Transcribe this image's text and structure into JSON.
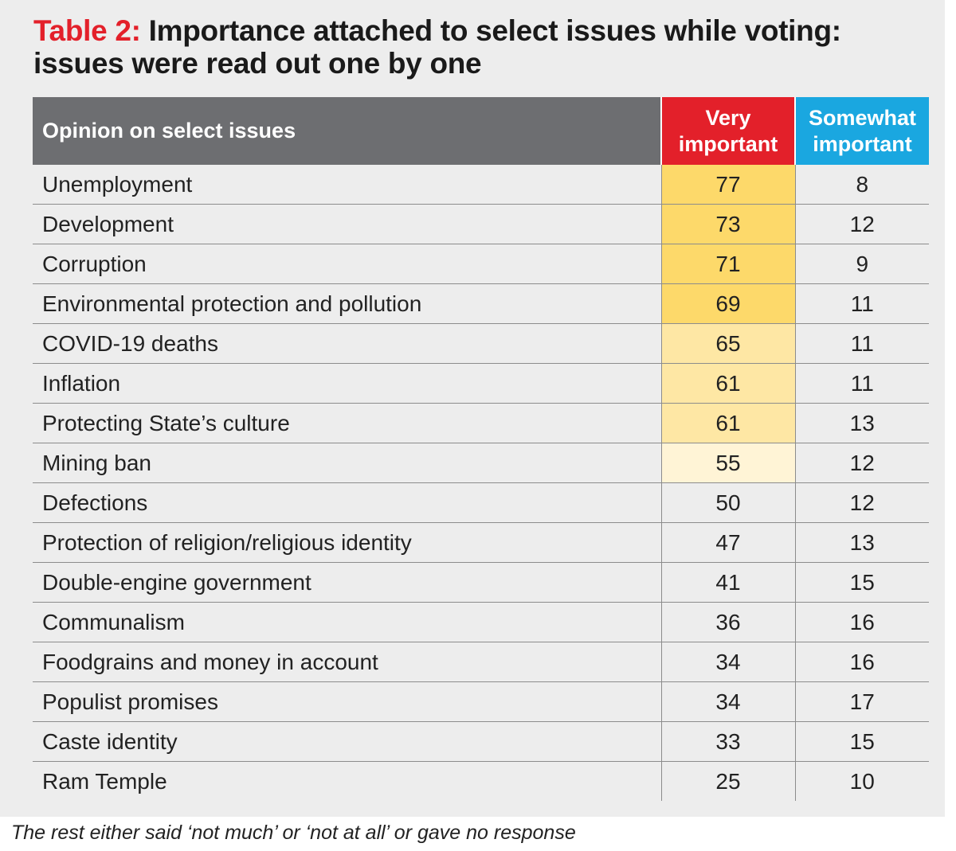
{
  "title": {
    "prefix": "Table 2:",
    "text_line1": "Importance attached to select issues while voting:",
    "text_line2": "issues were read out one by one"
  },
  "colors": {
    "title_prefix": "#e3202a",
    "very_important_header": "#e3202a",
    "somewhat_important_header": "#1aa7e0",
    "issue_header": "#6d6e71",
    "highlight_strong": "#fdd96a",
    "highlight_medium": "#fee7a4",
    "highlight_light": "#fff4d6"
  },
  "chart_data": {
    "type": "table",
    "columns": [
      "Opinion on select issues",
      "Very important",
      "Somewhat important"
    ],
    "rows": [
      {
        "issue": "Unemployment",
        "very": 77,
        "somewhat": 8,
        "highlight": "strong"
      },
      {
        "issue": "Development",
        "very": 73,
        "somewhat": 12,
        "highlight": "strong"
      },
      {
        "issue": "Corruption",
        "very": 71,
        "somewhat": 9,
        "highlight": "strong"
      },
      {
        "issue": "Environmental protection and pollution",
        "very": 69,
        "somewhat": 11,
        "highlight": "strong"
      },
      {
        "issue": "COVID-19 deaths",
        "very": 65,
        "somewhat": 11,
        "highlight": "medium"
      },
      {
        "issue": "Inflation",
        "very": 61,
        "somewhat": 11,
        "highlight": "medium"
      },
      {
        "issue": "Protecting State’s culture",
        "very": 61,
        "somewhat": 13,
        "highlight": "medium"
      },
      {
        "issue": "Mining ban",
        "very": 55,
        "somewhat": 12,
        "highlight": "light"
      },
      {
        "issue": "Defections",
        "very": 50,
        "somewhat": 12,
        "highlight": "none"
      },
      {
        "issue": "Protection of religion/religious identity",
        "very": 47,
        "somewhat": 13,
        "highlight": "none"
      },
      {
        "issue": "Double-engine government",
        "very": 41,
        "somewhat": 15,
        "highlight": "none"
      },
      {
        "issue": "Communalism",
        "very": 36,
        "somewhat": 16,
        "highlight": "none"
      },
      {
        "issue": "Foodgrains and money in account",
        "very": 34,
        "somewhat": 16,
        "highlight": "none"
      },
      {
        "issue": "Populist promises",
        "very": 34,
        "somewhat": 17,
        "highlight": "none"
      },
      {
        "issue": "Caste identity",
        "very": 33,
        "somewhat": 15,
        "highlight": "none"
      },
      {
        "issue": "Ram Temple",
        "very": 25,
        "somewhat": 10,
        "highlight": "none"
      }
    ]
  },
  "header": {
    "issue": "Opinion on select issues",
    "very_line1": "Very",
    "very_line2": "important",
    "somewhat_line1": "Somewhat",
    "somewhat_line2": "important"
  },
  "footnote": "The rest either said ‘not much’ or ‘not at all’ or gave no response"
}
